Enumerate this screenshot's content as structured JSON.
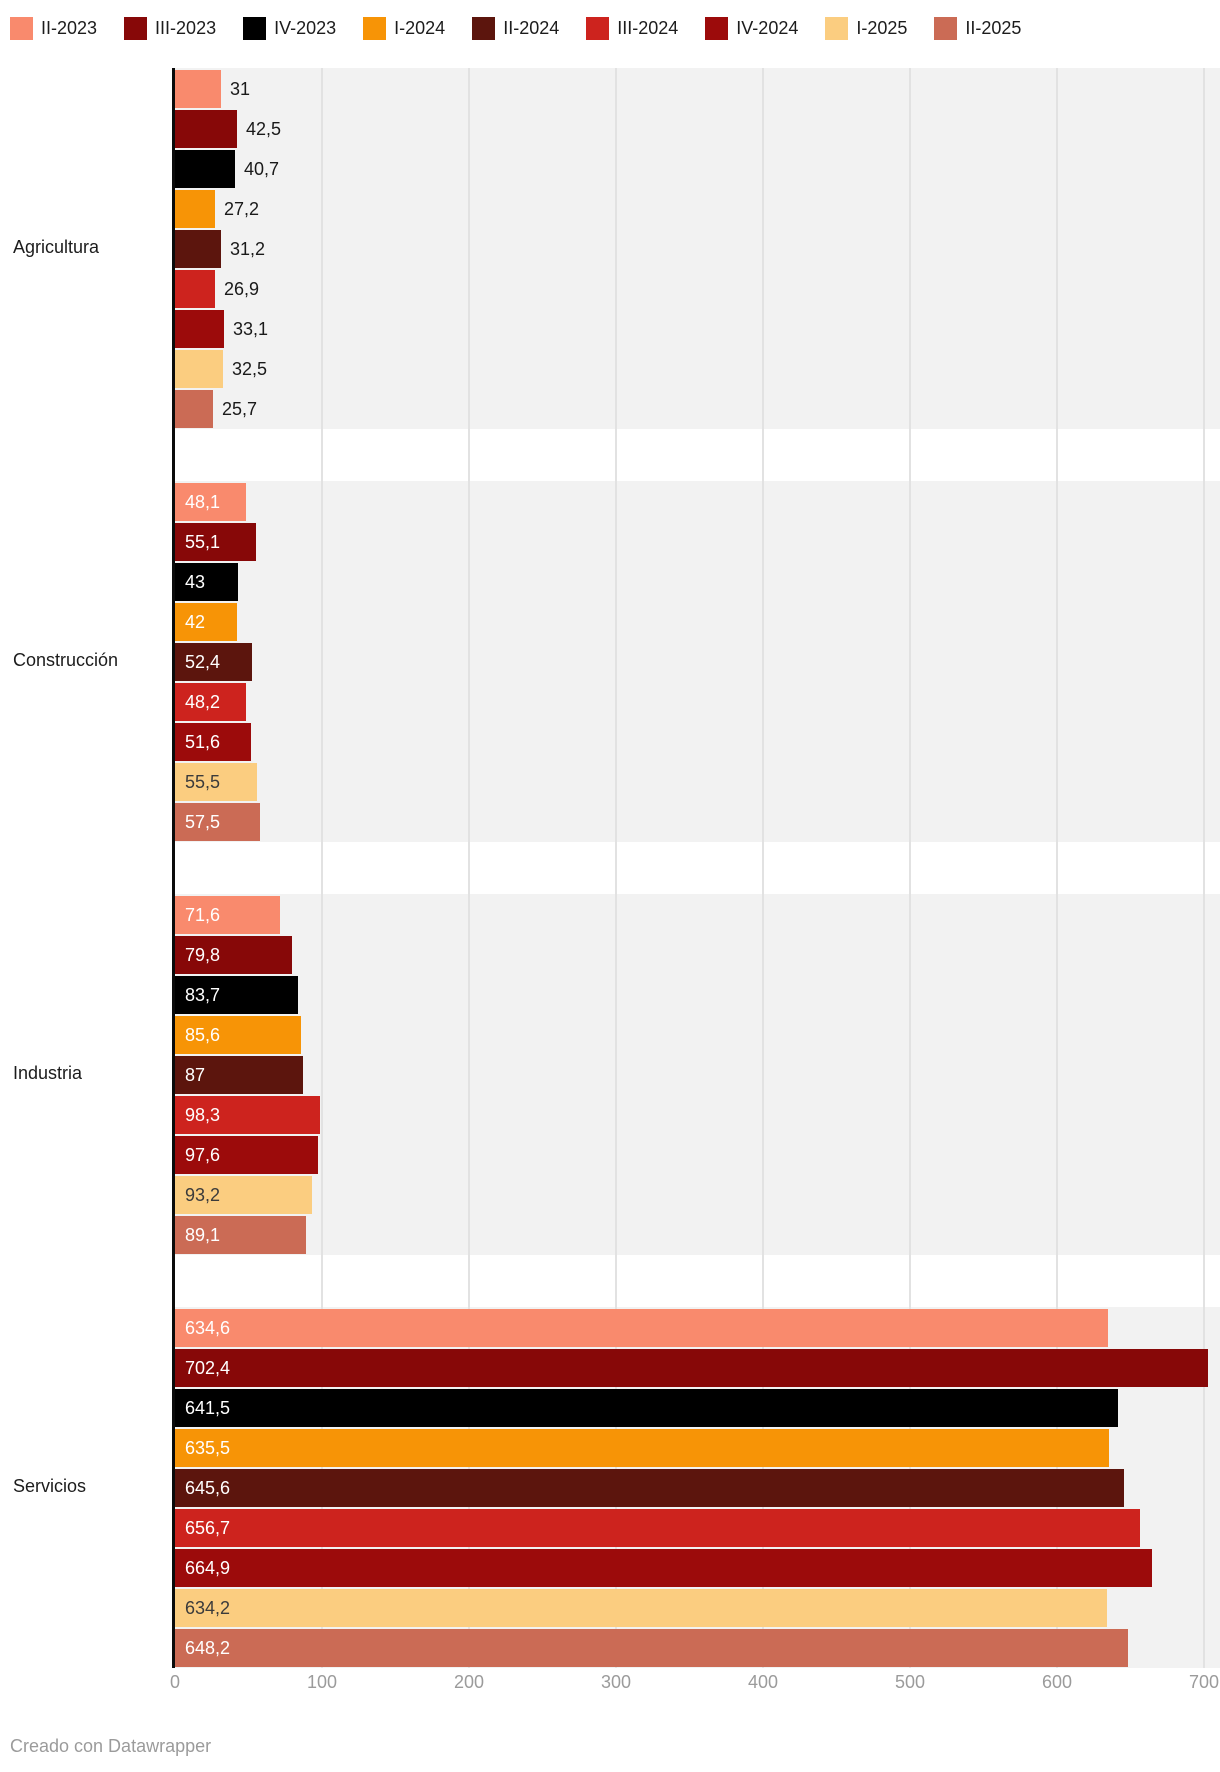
{
  "footer": {
    "credit": "Creado con Datawrapper"
  },
  "chart_data": {
    "type": "bar",
    "orientation": "horizontal",
    "title": "",
    "xlabel": "",
    "ylabel": "",
    "categories": [
      "Agricultura",
      "Construcción",
      "Industria",
      "Servicios"
    ],
    "series": [
      {
        "name": "II-2023",
        "color": "#f98a6d",
        "values": [
          31,
          48.1,
          71.6,
          634.6
        ],
        "labels": [
          "31",
          "48,1",
          "71,6",
          "634,6"
        ]
      },
      {
        "name": "III-2023",
        "color": "#870808",
        "values": [
          42.5,
          55.1,
          79.8,
          702.4
        ],
        "labels": [
          "42,5",
          "55,1",
          "79,8",
          "702,4"
        ]
      },
      {
        "name": "IV-2023",
        "color": "#000000",
        "values": [
          40.7,
          43,
          83.7,
          641.5
        ],
        "labels": [
          "40,7",
          "43",
          "83,7",
          "641,5"
        ]
      },
      {
        "name": "I-2024",
        "color": "#f79406",
        "values": [
          27.2,
          42,
          85.6,
          635.5
        ],
        "labels": [
          "27,2",
          "42",
          "85,6",
          "635,5"
        ]
      },
      {
        "name": "II-2024",
        "color": "#5c150d",
        "values": [
          31.2,
          52.4,
          87,
          645.6
        ],
        "labels": [
          "31,2",
          "52,4",
          "87",
          "645,6"
        ]
      },
      {
        "name": "III-2024",
        "color": "#cd231e",
        "values": [
          26.9,
          48.2,
          98.3,
          656.7
        ],
        "labels": [
          "26,9",
          "48,2",
          "98,3",
          "656,7"
        ]
      },
      {
        "name": "IV-2024",
        "color": "#9c0b0b",
        "values": [
          33.1,
          51.6,
          97.6,
          664.9
        ],
        "labels": [
          "33,1",
          "51,6",
          "97,6",
          "664,9"
        ]
      },
      {
        "name": "I-2025",
        "color": "#fbcd80",
        "values": [
          32.5,
          55.5,
          93.2,
          634.2
        ],
        "labels": [
          "32,5",
          "55,5",
          "93,2",
          "634,2"
        ],
        "label_text_dark": true
      },
      {
        "name": "II-2025",
        "color": "#cb6b55",
        "values": [
          25.7,
          57.5,
          89.1,
          648.2
        ],
        "labels": [
          "25,7",
          "57,5",
          "89,1",
          "648,2"
        ]
      }
    ],
    "x_ticks": [
      "0",
      "100",
      "200",
      "300",
      "400",
      "500",
      "600",
      "700"
    ],
    "xlim": [
      0,
      700
    ],
    "grid": true,
    "legend_position": "top",
    "labels_inside_by_category": [
      false,
      true,
      true,
      true
    ],
    "colors": {
      "band_background": "#f2f2f2",
      "gridline": "#e2e2e2",
      "axis_line": "#0b0b0b",
      "label_inside_light": "#ffffff",
      "label_inside_dark": "#3b3b3b",
      "label_outside": "#1a1a1a",
      "tick_text": "#9b9b9b",
      "category_text": "#1c1c1c"
    }
  }
}
